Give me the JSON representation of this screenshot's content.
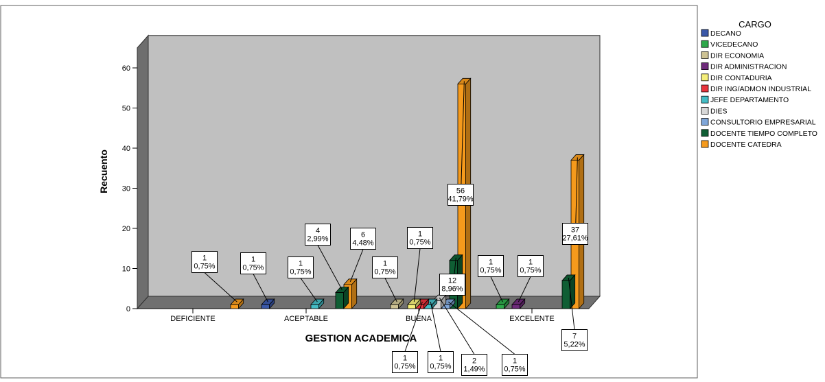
{
  "chart_data": {
    "type": "bar",
    "xlabel": "GESTION ACADEMICA",
    "ylabel": "Recuento",
    "ylim": [
      0,
      65
    ],
    "yticks": [
      0,
      10,
      20,
      30,
      40,
      50,
      60
    ],
    "categories": [
      "DEFICIENTE",
      "ACEPTABLE",
      "BUENA",
      "EXCELENTE"
    ],
    "legend_title": "CARGO",
    "legend_position": "right",
    "series": [
      {
        "name": "DECANO",
        "color": "#3a58a8"
      },
      {
        "name": "VICEDECANO",
        "color": "#2ea84a"
      },
      {
        "name": "DIR ECONOMIA",
        "color": "#cdc293"
      },
      {
        "name": "DIR ADMINISTRACION",
        "color": "#6e2a7a"
      },
      {
        "name": "DIR CONTADURIA",
        "color": "#f4ee7a"
      },
      {
        "name": "DIR ING/ADMON INDUSTRIAL",
        "color": "#e8343c"
      },
      {
        "name": "JEFE DEPARTAMENTO",
        "color": "#44bcc4"
      },
      {
        "name": "DIES",
        "color": "#d8d8d8"
      },
      {
        "name": "CONSULTORIO EMPRESARIAL",
        "color": "#7fa6d8"
      },
      {
        "name": "DOCENTE TIEMPO COMPLETO",
        "color": "#0f5e34"
      },
      {
        "name": "DOCENTE CATEDRA",
        "color": "#f59a1c"
      }
    ],
    "bars": [
      {
        "category": "DEFICIENTE",
        "series": "DOCENTE CATEDRA",
        "value": 1,
        "label": [
          "1",
          "0,75%"
        ]
      },
      {
        "category": "DEFICIENTE",
        "series": "DECANO",
        "value": 1,
        "label": [
          "1",
          "0,75%"
        ]
      },
      {
        "category": "ACEPTABLE",
        "series": "JEFE DEPARTAMENTO",
        "value": 1,
        "label": [
          "1",
          "0,75%"
        ]
      },
      {
        "category": "ACEPTABLE",
        "series": "DOCENTE TIEMPO COMPLETO",
        "value": 4,
        "label": [
          "4",
          "2,99%"
        ]
      },
      {
        "category": "ACEPTABLE",
        "series": "DOCENTE CATEDRA",
        "value": 6,
        "label": [
          "6",
          "4,48%"
        ]
      },
      {
        "category": "BUENA",
        "series": "DIR ECONOMIA",
        "value": 1,
        "label": [
          "1",
          "0,75%"
        ]
      },
      {
        "category": "BUENA",
        "series": "DIR CONTADURIA",
        "value": 1,
        "label": [
          "1",
          "0,75%"
        ]
      },
      {
        "category": "BUENA",
        "series": "DIR ING/ADMON INDUSTRIAL",
        "value": 1,
        "label": [
          "1",
          "0,75%"
        ]
      },
      {
        "category": "BUENA",
        "series": "JEFE DEPARTAMENTO",
        "value": 1,
        "label": [
          "1",
          "0,75%"
        ]
      },
      {
        "category": "BUENA",
        "series": "DIES",
        "value": 2,
        "label": [
          "2",
          "1,49%"
        ]
      },
      {
        "category": "BUENA",
        "series": "CONSULTORIO EMPRESARIAL",
        "value": 1,
        "label": [
          "1",
          "0,75%"
        ]
      },
      {
        "category": "BUENA",
        "series": "DOCENTE TIEMPO COMPLETO",
        "value": 12,
        "label": [
          "12",
          "8,96%"
        ]
      },
      {
        "category": "BUENA",
        "series": "DOCENTE CATEDRA",
        "value": 56,
        "label": [
          "56",
          "41,79%"
        ]
      },
      {
        "category": "EXCELENTE",
        "series": "VICEDECANO",
        "value": 1,
        "label": [
          "1",
          "0,75%"
        ]
      },
      {
        "category": "EXCELENTE",
        "series": "DIR ADMINISTRACION",
        "value": 1,
        "label": [
          "1",
          "0,75%"
        ]
      },
      {
        "category": "EXCELENTE",
        "series": "DOCENTE TIEMPO COMPLETO",
        "value": 7,
        "label": [
          "7",
          "5,22%"
        ]
      },
      {
        "category": "EXCELENTE",
        "series": "DOCENTE CATEDRA",
        "value": 37,
        "label": [
          "37",
          "27,61%"
        ]
      }
    ]
  }
}
